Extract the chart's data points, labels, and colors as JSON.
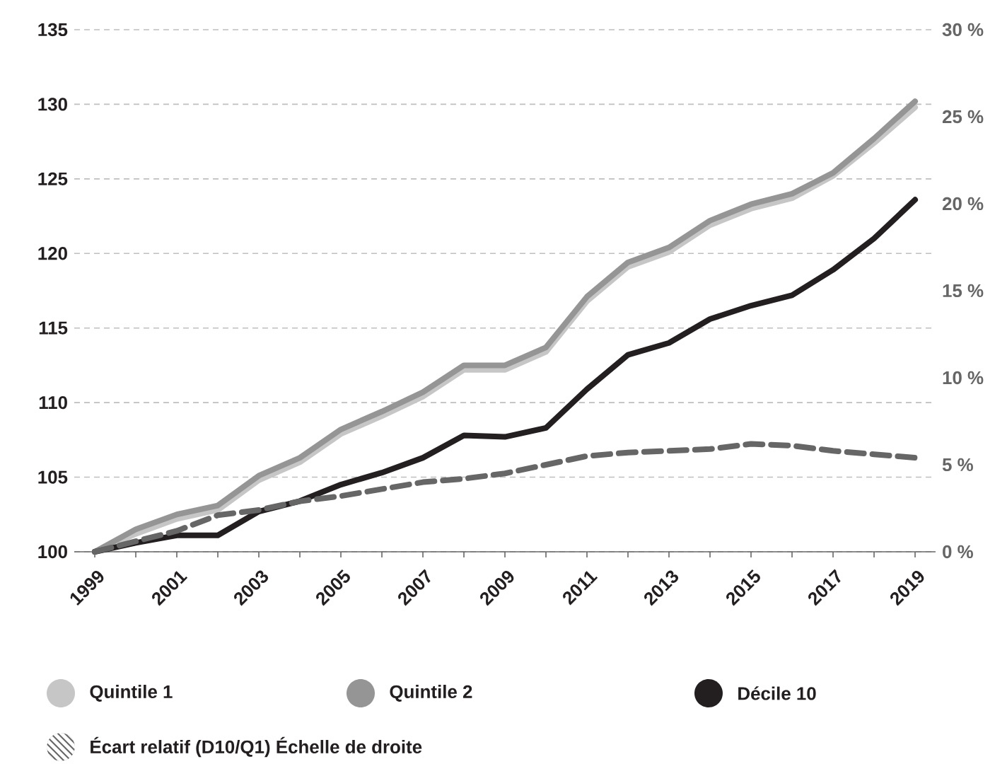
{
  "chart_data": {
    "type": "line",
    "x": [
      1999,
      2000,
      2001,
      2002,
      2003,
      2004,
      2005,
      2006,
      2007,
      2008,
      2009,
      2010,
      2011,
      2012,
      2013,
      2014,
      2015,
      2016,
      2017,
      2018,
      2019
    ],
    "xlim": [
      1998.5,
      2019.5
    ],
    "xticks": [
      1999,
      {
        "value": 2000,
        "label": null
      },
      2001,
      {
        "value": 2002,
        "label": null
      },
      2003,
      {
        "value": 2004,
        "label": null
      },
      2005,
      {
        "value": 2006,
        "label": null
      },
      2007,
      {
        "value": 2008,
        "label": null
      },
      2009,
      {
        "value": 2010,
        "label": null
      },
      2011,
      {
        "value": 2012,
        "label": null
      },
      2013,
      {
        "value": 2014,
        "label": null
      },
      2015,
      {
        "value": 2016,
        "label": null
      },
      2017,
      {
        "value": 2018,
        "label": null
      },
      2019
    ],
    "ylim": [
      100,
      135
    ],
    "yticks": [
      100,
      105,
      110,
      115,
      120,
      125,
      130,
      135
    ],
    "y2lim": [
      0,
      30
    ],
    "y2ticks": [
      {
        "value": 0,
        "label": "0 %"
      },
      {
        "value": 5,
        "label": "5 %"
      },
      {
        "value": 10,
        "label": "10 %"
      },
      {
        "value": 15,
        "label": "15 %"
      },
      {
        "value": 20,
        "label": "20 %"
      },
      {
        "value": 25,
        "label": "25 %"
      },
      {
        "value": 30,
        "label": "30 %"
      }
    ],
    "grid": "y",
    "legend": "bottom",
    "series": [
      {
        "name": "Quintile 1",
        "color": "#c6c6c6",
        "values": [
          100,
          101.2,
          102.2,
          102.8,
          104.8,
          106.0,
          107.9,
          109.1,
          110.4,
          112.2,
          112.2,
          113.4,
          116.8,
          119.1,
          120.1,
          121.9,
          123.0,
          123.7,
          125.2,
          127.4,
          129.8
        ]
      },
      {
        "name": "Quintile 2",
        "color": "#959595",
        "values": [
          100,
          101.5,
          102.5,
          103.1,
          105.1,
          106.3,
          108.2,
          109.4,
          110.7,
          112.5,
          112.5,
          113.7,
          117.1,
          119.4,
          120.4,
          122.2,
          123.3,
          124.0,
          125.4,
          127.7,
          130.2
        ]
      },
      {
        "name": "Décile 10",
        "color": "#231f20",
        "values": [
          100,
          100.6,
          101.1,
          101.1,
          102.7,
          103.4,
          104.5,
          105.3,
          106.3,
          107.8,
          107.7,
          108.3,
          110.9,
          113.2,
          114.0,
          115.6,
          116.5,
          117.2,
          118.9,
          121.0,
          123.6
        ]
      },
      {
        "name": "Écart relatif (D10/Q1) Échelle de droite",
        "color": "#666666",
        "axis": "y2",
        "line_style": "dashed",
        "values": [
          0,
          0.6,
          1.2,
          2.1,
          2.4,
          2.9,
          3.2,
          3.6,
          4.0,
          4.2,
          4.5,
          5.0,
          5.5,
          5.7,
          5.8,
          5.9,
          6.2,
          6.1,
          5.8,
          5.6,
          5.4
        ]
      }
    ]
  }
}
